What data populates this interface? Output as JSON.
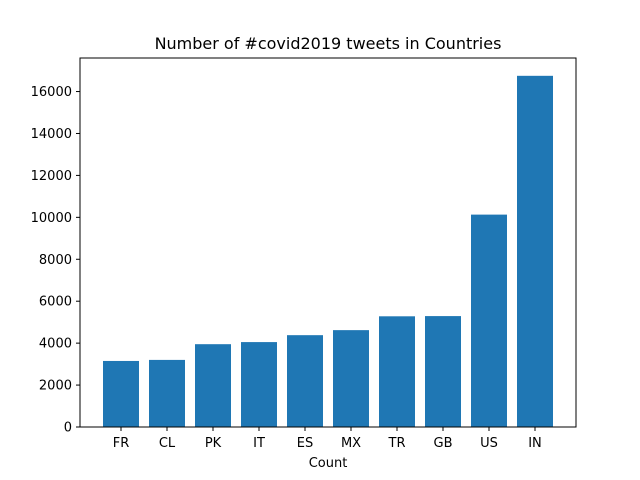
{
  "chart_data": {
    "type": "bar",
    "title": "Number of #covid2019 tweets in Countries",
    "xlabel": "Count",
    "ylabel": "",
    "categories": [
      "FR",
      "CL",
      "PK",
      "IT",
      "ES",
      "MX",
      "TR",
      "GB",
      "US",
      "IN"
    ],
    "values": [
      3150,
      3200,
      3950,
      4050,
      4380,
      4620,
      5280,
      5290,
      10130,
      16750
    ],
    "ylim": [
      0,
      17600
    ],
    "yticks": [
      0,
      2000,
      4000,
      6000,
      8000,
      10000,
      12000,
      14000,
      16000
    ],
    "bar_color": "#1f77b4",
    "grid": false,
    "legend": "none"
  }
}
